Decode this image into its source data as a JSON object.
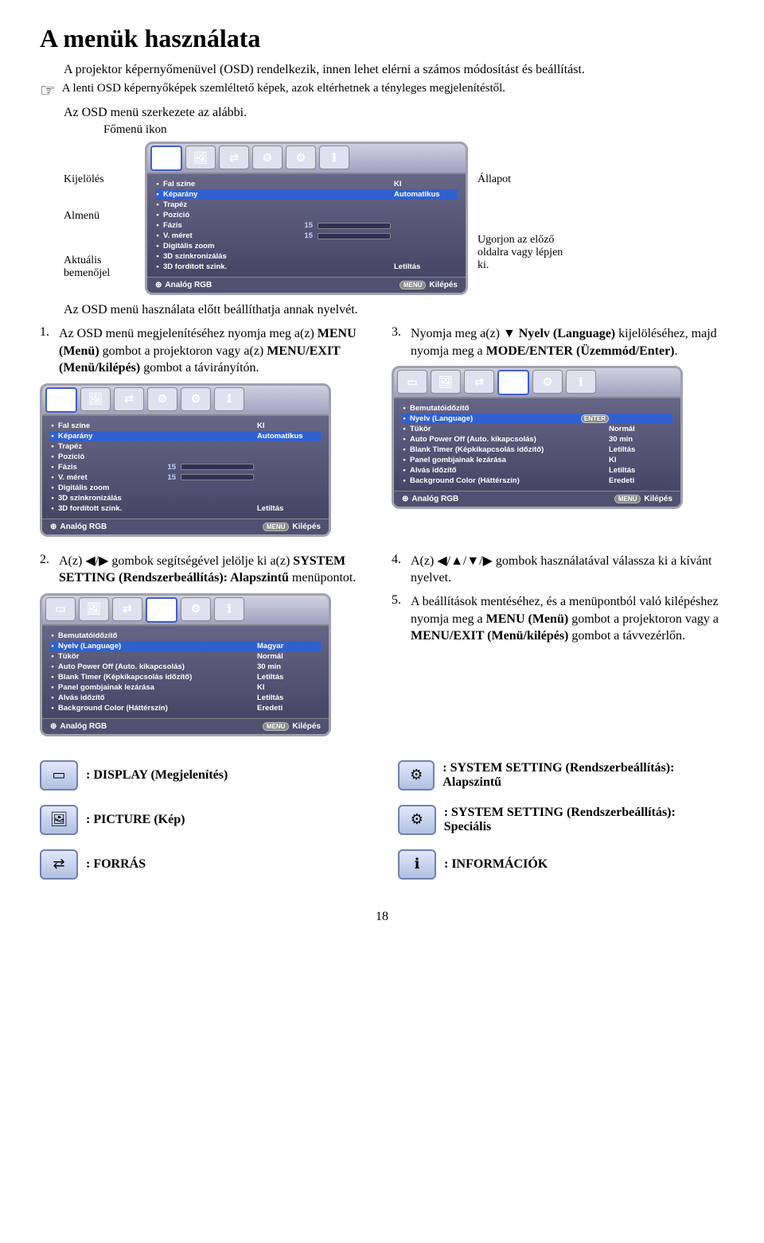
{
  "title": "A menük használata",
  "intro": "A projektor képernyőmenüvel (OSD) rendelkezik, innen lehet elérni a számos módosítást és beállítást.",
  "note": "A lenti OSD képernyőképek szemléltető képek, azok eltérhetnek a tényleges megjelenítéstől.",
  "sub1": "Az OSD menü szerkezete az alábbi.",
  "fomenu": "Főmenü ikon",
  "anno": {
    "left": {
      "kijeloles": "Kijelölés",
      "almenu": "Almenü",
      "aktualis": "Aktuális bemenőjel"
    },
    "right": {
      "allapot": "Állapot",
      "ugorjon": "Ugorjon az előző oldalra vagy lépjen ki."
    }
  },
  "osd_display": {
    "tabs_sel": 0,
    "rows": [
      {
        "lbl": "Fal színe",
        "val": "KI",
        "hl": false
      },
      {
        "lbl": "Képarány",
        "val": "Automatikus",
        "hl": true
      },
      {
        "lbl": "Trapéz",
        "val": ""
      },
      {
        "lbl": "Pozíció",
        "val": ""
      },
      {
        "lbl": "Fázis",
        "num": "15",
        "bar": true
      },
      {
        "lbl": "V. méret",
        "num": "15",
        "bar": true
      },
      {
        "lbl": "Digitális zoom",
        "val": ""
      },
      {
        "lbl": "3D szinkronizálás",
        "val": ""
      },
      {
        "lbl": "3D fordított szink.",
        "val": "Letiltás"
      }
    ],
    "footer_left": "Analóg RGB",
    "footer_menu": "MENU",
    "footer_right": "Kilépés"
  },
  "osd_syssetup1": {
    "tabs_sel": 3,
    "rows": [
      {
        "lbl": "Bemutatóidőzítő",
        "val": ""
      },
      {
        "lbl": "Nyelv (Language)",
        "val": "",
        "hl": true,
        "enter": true
      },
      {
        "lbl": "Tükör",
        "val": "Normál"
      },
      {
        "lbl": "Auto Power Off (Auto. kikapcsolás)",
        "val": "30 min"
      },
      {
        "lbl": "Blank Timer (Képkikapcsolás időzítő)",
        "val": "Letiltás"
      },
      {
        "lbl": "Panel gombjainak lezárása",
        "val": "KI"
      },
      {
        "lbl": "Alvás időzítő",
        "val": "Letiltás"
      },
      {
        "lbl": "Background Color (Háttérszín)",
        "val": "Eredeti"
      }
    ],
    "footer_left": "Analóg RGB",
    "footer_menu": "MENU",
    "footer_right": "Kilépés"
  },
  "osd_syssetup2": {
    "tabs_sel": 3,
    "rows": [
      {
        "lbl": "Bemutatóidőzítő",
        "val": ""
      },
      {
        "lbl": "Nyelv (Language)",
        "val": "Magyar",
        "hl": true
      },
      {
        "lbl": "Tükör",
        "val": "Normál"
      },
      {
        "lbl": "Auto Power Off (Auto. kikapcsolás)",
        "val": "30 min"
      },
      {
        "lbl": "Blank Timer (Képkikapcsolás időzítő)",
        "val": "Letiltás"
      },
      {
        "lbl": "Panel gombjainak lezárása",
        "val": "KI"
      },
      {
        "lbl": "Alvás időzítő",
        "val": "Letiltás"
      },
      {
        "lbl": "Background Color (Háttérszín)",
        "val": "Eredeti"
      }
    ],
    "footer_left": "Analóg RGB",
    "footer_menu": "MENU",
    "footer_right": "Kilépés"
  },
  "pre_steps": "Az OSD menü használata előtt beállíthatja annak nyelvét.",
  "step1": {
    "num": "1.",
    "p1": "Az OSD menü megjelenítéséhez nyomja meg a(z) ",
    "b1": "MENU (Menü)",
    "p2": " gombot a projektoron vagy a(z) ",
    "b2": "MENU/EXIT (Menü/kilépés)",
    "p3": " gombot a távirányítón."
  },
  "step2": {
    "num": "2.",
    "p1": "A(z) ◀/▶ gombok segítségével jelölje ki a(z) ",
    "b1": "SYSTEM SETTING (Rendszerbeállítás): Alapszintű",
    "p2": " menüpontot."
  },
  "step3": {
    "num": "3.",
    "p1": "Nyomja meg a(z) ▼ ",
    "b1": "Nyelv (Language)",
    "p2": " kijelöléséhez, majd nyomja meg a ",
    "b2": "MODE/ENTER (Üzemmód/Enter)",
    "p3": "."
  },
  "step4": {
    "num": "4.",
    "p1": "A(z) ◀/▲/▼/▶  gombok használatával válassza ki a kívánt nyelvet."
  },
  "step5": {
    "num": "5.",
    "p1": "A beállítások mentéséhez, és a menüpontból való kilépéshez nyomja meg a ",
    "b1": "MENU (Menü)",
    "p2": " gombot a projektoron vagy a ",
    "b2": "MENU/EXIT (Menü/kilépés)",
    "p3": " gombot a távvezérlőn."
  },
  "legend": {
    "display": ": DISPLAY (Megjelenítés)",
    "picture": ": PICTURE (Kép)",
    "forras": ": FORRÁS",
    "sys1": ": SYSTEM SETTING (Rendszerbeállítás): Alapszintű",
    "sys2": ": SYSTEM SETTING (Rendszerbeállítás): Speciális",
    "info": ": INFORMÁCIÓK"
  },
  "pagenum": "18",
  "icons": {
    "display": "▭",
    "picture": "🖼",
    "source": "⇄",
    "gear1": "⚙",
    "gear2": "⚙",
    "info": "ℹ"
  }
}
